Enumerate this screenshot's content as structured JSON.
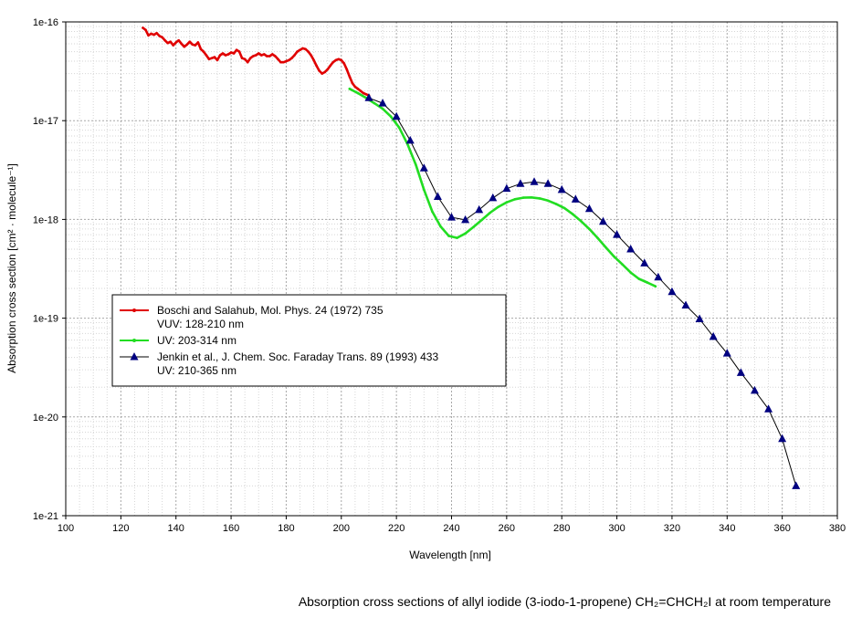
{
  "chart_data": {
    "type": "line",
    "yscale": "log",
    "xlabel": "Wavelength [nm]",
    "ylabel": "Absorption cross section [cm² · molecule⁻¹]",
    "xlim": [
      100,
      380
    ],
    "ylim": [
      1e-21,
      1e-16
    ],
    "x_ticks": [
      100,
      120,
      140,
      160,
      180,
      200,
      220,
      240,
      260,
      280,
      300,
      320,
      340,
      360,
      380
    ],
    "x_tick_labels": [
      "100",
      "120",
      "140",
      "160",
      "180",
      "200",
      "220",
      "240",
      "260",
      "280",
      "300",
      "320",
      "340",
      "360",
      "380"
    ],
    "y_ticks": [
      1e-21,
      1e-20,
      1e-19,
      1e-18,
      1e-17,
      1e-16
    ],
    "y_tick_labels": [
      "1e-21",
      "1e-20",
      "1e-19",
      "1e-18",
      "1e-17",
      "1e-16"
    ],
    "grid": true,
    "legend_position": "left-middle",
    "caption": "Absorption cross sections of allyl iodide (3-iodo-1-propene) CH₂=CHCH₂I at room temperature",
    "series": [
      {
        "name": "Boschi and Salahub, Mol. Phys. 24 (1972) 735",
        "name2": "VUV: 128-210 nm",
        "color": "#e00000",
        "marker": "dot",
        "x": [
          128,
          129,
          130,
          131,
          132,
          133,
          134,
          135,
          136,
          137,
          138,
          139,
          140,
          141,
          142,
          143,
          144,
          145,
          146,
          147,
          148,
          149,
          150,
          151,
          152,
          153,
          154,
          155,
          156,
          157,
          158,
          159,
          160,
          161,
          162,
          163,
          164,
          165,
          166,
          167,
          168,
          169,
          170,
          171,
          172,
          173,
          174,
          175,
          176,
          177,
          178,
          179,
          180,
          181,
          182,
          183,
          184,
          185,
          186,
          187,
          188,
          189,
          190,
          191,
          192,
          193,
          194,
          195,
          196,
          197,
          198,
          199,
          200,
          201,
          202,
          203,
          204,
          205,
          206,
          207,
          208,
          209,
          210
        ],
        "y": [
          8.7e-17,
          8.3e-17,
          7.3e-17,
          7.6e-17,
          7.4e-17,
          7.7e-17,
          7.2e-17,
          7e-17,
          6.5e-17,
          6.1e-17,
          6.3e-17,
          5.8e-17,
          6.2e-17,
          6.5e-17,
          6e-17,
          5.6e-17,
          5.9e-17,
          6.3e-17,
          5.9e-17,
          5.8e-17,
          6.2e-17,
          5.3e-17,
          5e-17,
          4.6e-17,
          4.2e-17,
          4.3e-17,
          4.4e-17,
          4.1e-17,
          4.6e-17,
          4.8e-17,
          4.6e-17,
          4.7e-17,
          4.9e-17,
          4.8e-17,
          5.2e-17,
          5e-17,
          4.3e-17,
          4.2e-17,
          3.9e-17,
          4.3e-17,
          4.5e-17,
          4.6e-17,
          4.8e-17,
          4.6e-17,
          4.7e-17,
          4.5e-17,
          4.5e-17,
          4.7e-17,
          4.5e-17,
          4.2e-17,
          3.9e-17,
          3.9e-17,
          4e-17,
          4.1e-17,
          4.3e-17,
          4.6e-17,
          5e-17,
          5.2e-17,
          5.4e-17,
          5.3e-17,
          5e-17,
          4.6e-17,
          4.1e-17,
          3.6e-17,
          3.2e-17,
          3e-17,
          3.1e-17,
          3.3e-17,
          3.6e-17,
          3.9e-17,
          4.1e-17,
          4.2e-17,
          4.1e-17,
          3.8e-17,
          3.3e-17,
          2.8e-17,
          2.4e-17,
          2.2e-17,
          2.1e-17,
          2e-17,
          1.9e-17,
          1.85e-17,
          1.8e-17
        ]
      },
      {
        "name": "UV: 203-314 nm",
        "color": "#22dd22",
        "marker": "dot",
        "x": [
          203,
          206,
          209,
          212,
          215,
          218,
          221,
          224,
          227,
          230,
          233,
          236,
          239,
          242,
          245,
          248,
          251,
          254,
          257,
          260,
          263,
          266,
          269,
          272,
          275,
          278,
          281,
          284,
          287,
          290,
          293,
          296,
          299,
          302,
          305,
          308,
          311,
          314
        ],
        "y": [
          2.1e-17,
          1.9e-17,
          1.7e-17,
          1.5e-17,
          1.32e-17,
          1.1e-17,
          8.5e-18,
          5.8e-18,
          3.6e-18,
          2e-18,
          1.2e-18,
          8.5e-19,
          6.8e-19,
          6.5e-19,
          7.2e-19,
          8.4e-19,
          9.9e-19,
          1.17e-18,
          1.34e-18,
          1.49e-18,
          1.6e-18,
          1.66e-18,
          1.67e-18,
          1.63e-18,
          1.55e-18,
          1.43e-18,
          1.3e-18,
          1.13e-18,
          9.6e-19,
          8e-19,
          6.5e-19,
          5.2e-19,
          4.2e-19,
          3.5e-19,
          2.9e-19,
          2.5e-19,
          2.3e-19,
          2.1e-19
        ]
      },
      {
        "name": "Jenkin et al.,  J. Chem. Soc. Faraday Trans. 89 (1993) 433",
        "name2": "UV: 210-365 nm",
        "color": "#000080",
        "line_color": "#000000",
        "marker": "triangle",
        "x": [
          210,
          215,
          220,
          225,
          230,
          235,
          240,
          245,
          250,
          255,
          260,
          265,
          270,
          275,
          280,
          285,
          290,
          295,
          300,
          305,
          310,
          315,
          320,
          325,
          330,
          335,
          340,
          345,
          350,
          355,
          360,
          365
        ],
        "y": [
          1.7e-17,
          1.5e-17,
          1.1e-17,
          6.3e-18,
          3.3e-18,
          1.7e-18,
          1.05e-18,
          9.9e-19,
          1.25e-18,
          1.65e-18,
          2.05e-18,
          2.3e-18,
          2.4e-18,
          2.3e-18,
          2e-18,
          1.6e-18,
          1.28e-18,
          9.5e-19,
          7e-19,
          5e-19,
          3.6e-19,
          2.6e-19,
          1.85e-19,
          1.35e-19,
          9.8e-20,
          6.5e-20,
          4.4e-20,
          2.8e-20,
          1.85e-20,
          1.2e-20,
          6e-21,
          2e-21
        ]
      }
    ]
  }
}
